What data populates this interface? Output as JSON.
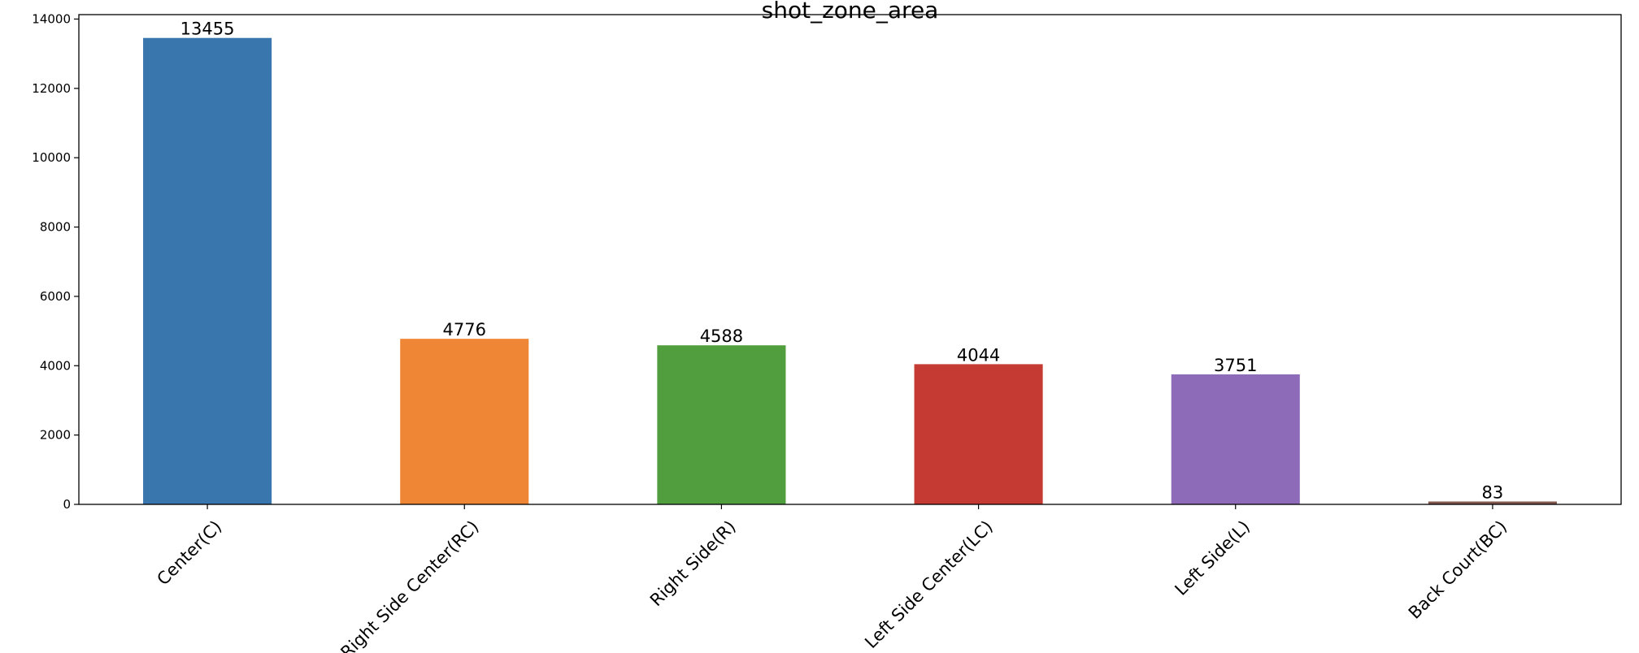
{
  "chart_data": {
    "type": "bar",
    "title": "shot_zone_area",
    "xlabel": "",
    "ylabel": "",
    "categories": [
      "Center(C)",
      "Right Side Center(RC)",
      "Right Side(R)",
      "Left Side Center(LC)",
      "Left Side(L)",
      "Back Court(BC)"
    ],
    "values": [
      13455,
      4776,
      4588,
      4044,
      3751,
      83
    ],
    "colors": [
      "#3a76ae",
      "#ef8636",
      "#519e3e",
      "#c53a32",
      "#8d6bb8",
      "#84584e"
    ],
    "ylim": [
      0,
      14128
    ],
    "yticks": [
      0,
      2000,
      4000,
      6000,
      8000,
      10000,
      12000,
      14000
    ],
    "grid": false,
    "legend": "none"
  }
}
